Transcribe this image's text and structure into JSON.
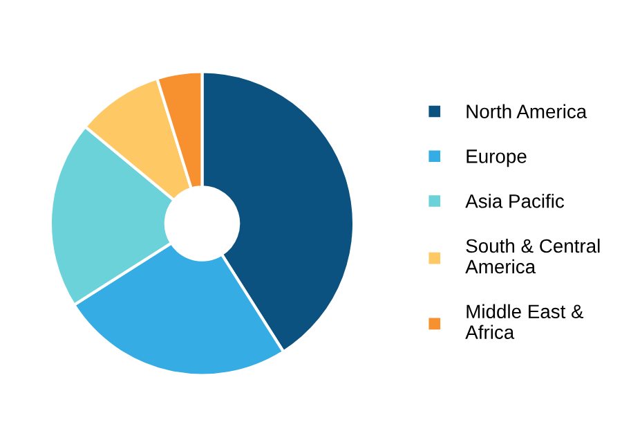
{
  "chart_data": {
    "type": "donut",
    "categories": [
      "North America",
      "Europe",
      "Asia Pacific",
      "South & Central\nAmerica",
      "Middle East &\nAfrica"
    ],
    "values": [
      41,
      25,
      20,
      9.2,
      4.8
    ],
    "colors": [
      "#0b5280",
      "#35ade4",
      "#6bd2da",
      "#fec964",
      "#f7902f"
    ],
    "legend": "right"
  }
}
